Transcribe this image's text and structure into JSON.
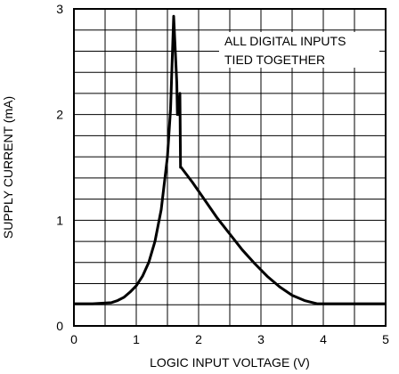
{
  "chart_data": {
    "type": "line",
    "title": "",
    "xlabel": "LOGIC INPUT VOLTAGE (V)",
    "ylabel": "SUPPLY CURRENT (mA)",
    "xlim": [
      0,
      5
    ],
    "ylim": [
      0,
      3
    ],
    "x_ticks": [
      "0",
      "1",
      "2",
      "3",
      "4",
      "5"
    ],
    "y_ticks": [
      "0",
      "1",
      "2",
      "3"
    ],
    "x_minor_divisions": 10,
    "y_minor_divisions": 15,
    "grid": true,
    "annotation": [
      "ALL DIGITAL INPUTS",
      "TIED TOGETHER"
    ],
    "series": [
      {
        "points": [
          [
            0.0,
            0.21
          ],
          [
            0.3,
            0.21
          ],
          [
            0.6,
            0.22
          ],
          [
            0.7,
            0.24
          ],
          [
            0.8,
            0.27
          ],
          [
            0.9,
            0.32
          ],
          [
            1.0,
            0.38
          ],
          [
            1.1,
            0.47
          ],
          [
            1.2,
            0.6
          ],
          [
            1.3,
            0.8
          ],
          [
            1.4,
            1.1
          ],
          [
            1.5,
            1.6
          ],
          [
            1.55,
            2.05
          ],
          [
            1.6,
            2.93
          ],
          [
            1.65,
            2.3
          ],
          [
            1.66,
            2.0
          ],
          [
            1.68,
            2.0
          ],
          [
            1.7,
            2.2
          ],
          [
            1.71,
            1.5
          ],
          [
            1.72,
            1.5
          ],
          [
            1.9,
            1.36
          ],
          [
            2.1,
            1.19
          ],
          [
            2.3,
            1.02
          ],
          [
            2.5,
            0.87
          ],
          [
            2.7,
            0.72
          ],
          [
            2.9,
            0.59
          ],
          [
            3.1,
            0.47
          ],
          [
            3.3,
            0.37
          ],
          [
            3.5,
            0.29
          ],
          [
            3.7,
            0.24
          ],
          [
            3.9,
            0.21
          ],
          [
            4.0,
            0.21
          ],
          [
            5.0,
            0.21
          ]
        ]
      }
    ]
  }
}
